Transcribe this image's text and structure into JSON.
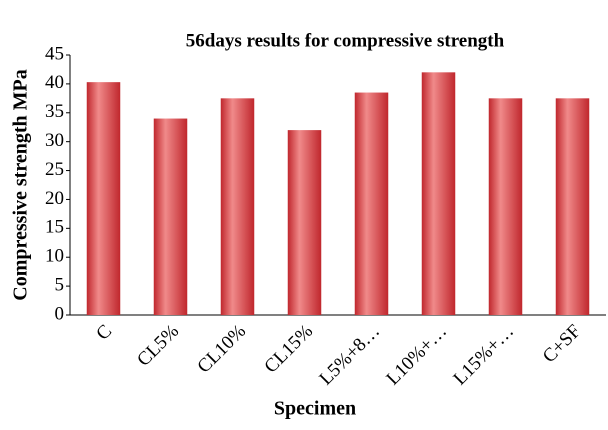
{
  "chart_data": {
    "type": "bar",
    "title": "56days results for compressive strength",
    "x_label": "Specimen",
    "y_label": "Compressive strength MPa",
    "categories": [
      "C",
      "CL5%",
      "CL10%",
      "CL15%",
      "L5%+8…",
      "L10%+…",
      "L15%+…",
      "C+SF"
    ],
    "values": [
      40.3,
      34,
      37.5,
      32,
      38.5,
      42,
      37.5,
      37.5
    ],
    "color": "#c0272d",
    "ylim": [
      0,
      45
    ],
    "yticks": [
      0,
      5,
      10,
      15,
      20,
      25,
      30,
      35,
      40,
      45
    ],
    "grid": false
  }
}
